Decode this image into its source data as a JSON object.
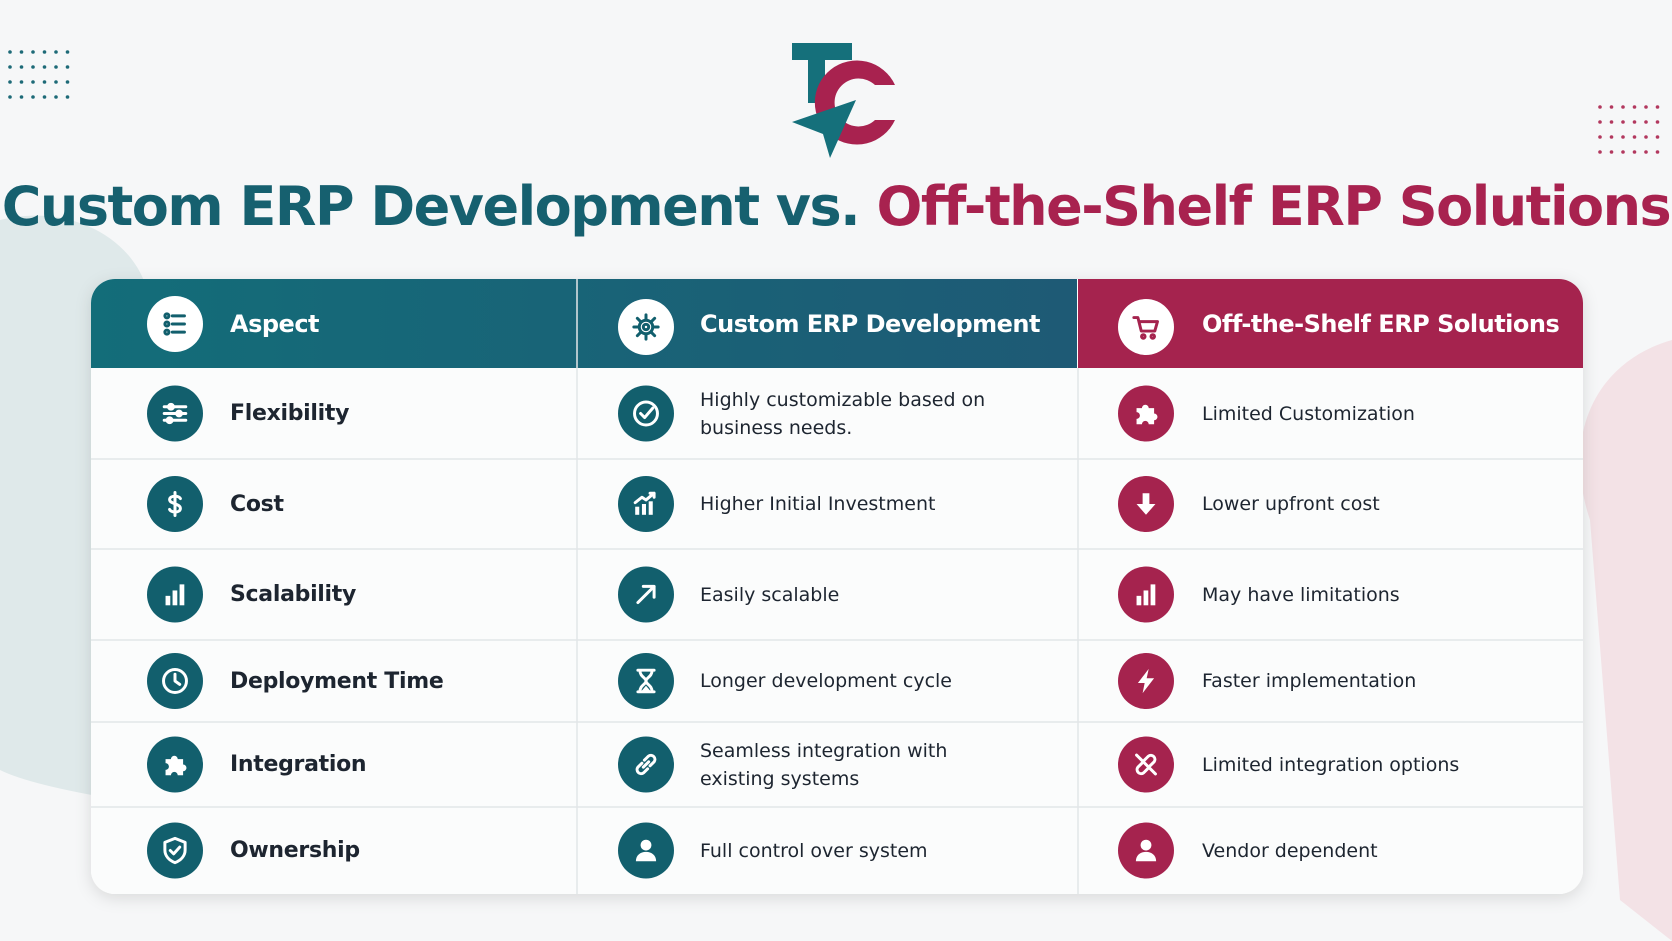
{
  "title": {
    "left": "Custom ERP Development vs.",
    "right": "Off-the-Shelf ERP Solutions"
  },
  "table": {
    "headers": [
      "Aspect",
      "Custom ERP Development",
      "Off-the-Shelf ERP Solutions"
    ],
    "rows": [
      [
        "Flexibility",
        "Highly customizable based on business needs.",
        "Limited Customization"
      ],
      [
        "Cost",
        "Higher Initial Investment",
        "Lower upfront cost"
      ],
      [
        "Scalability",
        "Easily scalable",
        "May have limitations"
      ],
      [
        "Deployment Time",
        "Longer development cycle",
        "Faster implementation"
      ],
      [
        "Integration",
        "Seamless integration with existing systems",
        "Limited integration options"
      ],
      [
        "Ownership",
        "Full control over system",
        "Vendor dependent"
      ]
    ]
  }
}
